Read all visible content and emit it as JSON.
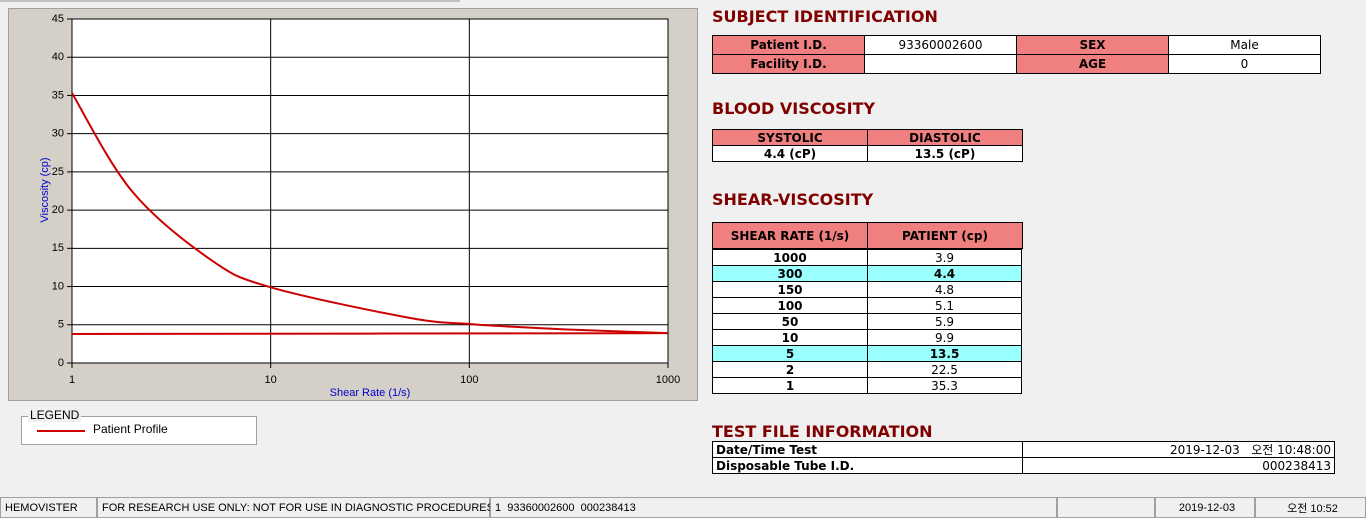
{
  "chart": {
    "type": "line",
    "x_label": "Shear Rate (1/s)",
    "y_label": "Viscosity (cp)",
    "xscale": "log",
    "xlim": [
      1,
      1000
    ],
    "xticks": [
      1,
      10,
      100,
      1000
    ],
    "ylim": [
      0,
      45
    ],
    "yticks": [
      0,
      5,
      10,
      15,
      20,
      25,
      30,
      35,
      40,
      45
    ],
    "grid": true,
    "legend_title": "LEGEND",
    "series": [
      {
        "name": "Patient Profile",
        "color": "#cc0000",
        "x": [
          1,
          2,
          5,
          10,
          50,
          100,
          150,
          300,
          1000
        ],
        "values": [
          35.3,
          22.5,
          13.5,
          9.9,
          5.9,
          5.1,
          4.8,
          4.4,
          3.9
        ]
      },
      {
        "color": "#cc0000",
        "x": [
          1,
          1000
        ],
        "values": [
          3.8,
          3.9
        ]
      }
    ]
  },
  "subject": {
    "title": "SUBJECT IDENTIFICATION",
    "rows": [
      [
        "Patient I.D.",
        "93360002600",
        "SEX",
        "Male"
      ],
      [
        "Facility I.D.",
        null,
        "AGE",
        "0"
      ]
    ]
  },
  "blood": {
    "title": "BLOOD VISCOSITY",
    "headers": [
      "SYSTOLIC",
      "DIASTOLIC"
    ],
    "values": [
      "4.4 (cP)",
      "13.5 (cP)"
    ]
  },
  "shear": {
    "title": "SHEAR-VISCOSITY",
    "headers": [
      "SHEAR RATE (1/s)",
      "PATIENT (cp)"
    ],
    "rows": [
      {
        "rate": "1000",
        "patient": "3.9",
        "highlight": false
      },
      {
        "rate": "300",
        "patient": "4.4",
        "highlight": true
      },
      {
        "rate": "150",
        "patient": "4.8",
        "highlight": false
      },
      {
        "rate": "100",
        "patient": "5.1",
        "highlight": false
      },
      {
        "rate": "50",
        "patient": "5.9",
        "highlight": false
      },
      {
        "rate": "10",
        "patient": "9.9",
        "highlight": false
      },
      {
        "rate": "5",
        "patient": "13.5",
        "highlight": true
      },
      {
        "rate": "2",
        "patient": "22.5",
        "highlight": false
      },
      {
        "rate": "1",
        "patient": "35.3",
        "highlight": false
      }
    ]
  },
  "test_file": {
    "title": "TEST FILE INFORMATION",
    "rows": [
      [
        "Date/Time Test",
        "2019-12-03   오전 10:48:00"
      ],
      [
        "Disposable Tube I.D.",
        "000238413"
      ]
    ]
  },
  "status_bar": [
    "HEMOVISTER",
    "FOR RESEARCH USE ONLY: NOT FOR USE IN DIAGNOSTIC PROCEDURES",
    "1  93360002600  000238413",
    "2019-12-03",
    "오전 10:52"
  ]
}
